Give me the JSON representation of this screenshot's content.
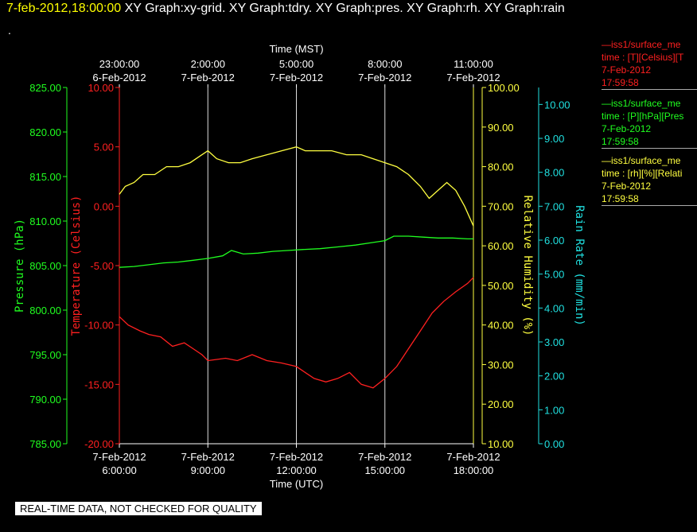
{
  "header": {
    "timestamp": "7-feb-2012,18:00:00",
    "graphs": [
      "XY Graph:xy-grid.",
      "XY Graph:tdry.",
      "XY Graph:pres.",
      "XY Graph:rh.",
      "XY Graph:rain"
    ],
    "dot": "."
  },
  "legend": [
    {
      "line1": "—iss1/surface_me",
      "line2": "time : [T][Celsius][T",
      "line3": "7-Feb-2012",
      "line4": "17:59:58",
      "color": "#ff2020"
    },
    {
      "line1": "—iss1/surface_me",
      "line2": "time : [P][hPa][Pres",
      "line3": "7-Feb-2012",
      "line4": "17:59:58",
      "color": "#20ff20"
    },
    {
      "line1": "—iss1/surface_me",
      "line2": "time : [rh][%][Relati",
      "line3": "7-Feb-2012",
      "line4": "17:59:58",
      "color": "#ffff40"
    }
  ],
  "disclaimer": "REAL-TIME DATA, NOT CHECKED FOR QUALITY",
  "chart_data": {
    "type": "line",
    "top_axis": {
      "label": "Time (MST)",
      "ticks": [
        {
          "time": "23:00:00",
          "date": "6-Feb-2012"
        },
        {
          "time": "2:00:00",
          "date": "7-Feb-2012"
        },
        {
          "time": "5:00:00",
          "date": "7-Feb-2012"
        },
        {
          "time": "8:00:00",
          "date": "7-Feb-2012"
        },
        {
          "time": "11:00:00",
          "date": "7-Feb-2012"
        }
      ]
    },
    "bottom_axis": {
      "label": "Time (UTC)",
      "ticks": [
        {
          "date": "7-Feb-2012",
          "time": "6:00:00"
        },
        {
          "date": "7-Feb-2012",
          "time": "9:00:00"
        },
        {
          "date": "7-Feb-2012",
          "time": "12:00:00"
        },
        {
          "date": "7-Feb-2012",
          "time": "15:00:00"
        },
        {
          "date": "7-Feb-2012",
          "time": "18:00:00"
        }
      ],
      "xlim": [
        6,
        18
      ]
    },
    "y_axes": [
      {
        "id": "pressure",
        "label": "Pressure (hPa)",
        "color": "#20ff20",
        "range": [
          785,
          825
        ],
        "ticks": [
          "825.00",
          "820.00",
          "815.00",
          "810.00",
          "805.00",
          "800.00",
          "795.00",
          "790.00",
          "785.00"
        ]
      },
      {
        "id": "temperature",
        "label": "Temperature (Celsius)",
        "color": "#ff2020",
        "range": [
          -20,
          10
        ],
        "ticks": [
          "10.00",
          "5.00",
          "0.00",
          "-5.00",
          "-10.00",
          "-15.00",
          "-20.00"
        ]
      },
      {
        "id": "rh",
        "label": "Relative Humidity (%)",
        "color": "#ffff40",
        "range": [
          10,
          100
        ],
        "ticks": [
          "100.00",
          "90.00",
          "80.00",
          "70.00",
          "60.00",
          "50.00",
          "40.00",
          "30.00",
          "20.00",
          "10.00"
        ]
      },
      {
        "id": "rain",
        "label": "Rain Rate (mm/min)",
        "color": "#20e0e0",
        "range": [
          0,
          10.5
        ],
        "ticks": [
          "10.00",
          "9.00",
          "8.00",
          "7.00",
          "6.00",
          "5.00",
          "4.00",
          "3.00",
          "2.00",
          "1.00",
          "0.00"
        ]
      }
    ],
    "grid": true,
    "series": [
      {
        "axis": "rh",
        "color": "#ffff40",
        "x": [
          6.0,
          6.2,
          6.5,
          6.8,
          7.2,
          7.6,
          8.0,
          8.4,
          8.8,
          9.0,
          9.3,
          9.7,
          10.1,
          10.5,
          11.0,
          11.5,
          12.0,
          12.3,
          12.7,
          13.2,
          13.7,
          14.2,
          14.6,
          15.0,
          15.4,
          15.8,
          16.2,
          16.5,
          16.8,
          17.1,
          17.4,
          17.7,
          18.0
        ],
        "y": [
          73,
          75,
          76,
          78,
          78,
          80,
          80,
          81,
          83,
          84,
          82,
          81,
          81,
          82,
          83,
          84,
          85,
          84,
          84,
          84,
          83,
          83,
          82,
          81,
          80,
          78,
          75,
          72,
          74,
          76,
          74,
          70,
          65
        ]
      },
      {
        "axis": "pressure",
        "color": "#20ff20",
        "x": [
          6.0,
          6.5,
          7.0,
          7.5,
          8.0,
          8.5,
          9.0,
          9.5,
          9.8,
          10.2,
          10.7,
          11.2,
          11.7,
          12.2,
          12.8,
          13.4,
          14.0,
          14.6,
          15.0,
          15.3,
          15.8,
          16.3,
          16.8,
          17.3,
          17.8,
          18.0
        ],
        "y": [
          804.8,
          804.9,
          805.1,
          805.3,
          805.4,
          805.6,
          805.8,
          806.1,
          806.7,
          806.3,
          806.4,
          806.6,
          806.7,
          806.8,
          806.9,
          807.1,
          807.3,
          807.6,
          807.8,
          808.3,
          808.3,
          808.2,
          808.1,
          808.1,
          808.0,
          808.0
        ]
      },
      {
        "axis": "temperature",
        "color": "#ff2020",
        "x": [
          6.0,
          6.3,
          6.7,
          7.0,
          7.4,
          7.8,
          8.2,
          8.5,
          8.8,
          9.0,
          9.3,
          9.6,
          10.0,
          10.5,
          11.0,
          11.5,
          12.0,
          12.3,
          12.6,
          13.0,
          13.4,
          13.8,
          14.2,
          14.6,
          15.0,
          15.4,
          15.8,
          16.2,
          16.6,
          17.0,
          17.4,
          17.8,
          18.0
        ],
        "y": [
          -9.3,
          -10,
          -10.5,
          -10.8,
          -11,
          -11.8,
          -11.5,
          -12,
          -12.5,
          -13,
          -12.9,
          -12.8,
          -13,
          -12.5,
          -13,
          -13.2,
          -13.5,
          -14,
          -14.5,
          -14.8,
          -14.5,
          -14,
          -15,
          -15.3,
          -14.5,
          -13.5,
          -12,
          -10.5,
          -9,
          -8,
          -7.2,
          -6.5,
          -6
        ]
      }
    ]
  }
}
